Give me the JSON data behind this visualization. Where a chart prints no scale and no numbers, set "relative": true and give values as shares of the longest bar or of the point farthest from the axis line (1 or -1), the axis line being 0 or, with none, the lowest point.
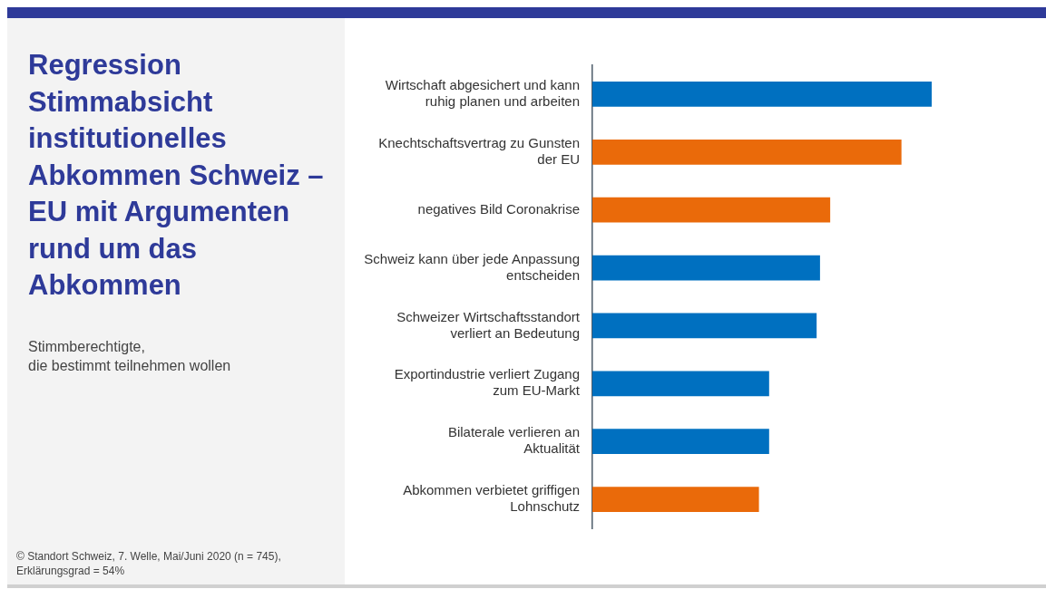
{
  "chart_data": {
    "type": "bar",
    "orientation": "horizontal",
    "relative": true,
    "title": "Regression Stimmabsicht institutionelles Abkommen Schweiz – EU mit Argumenten rund um das Abkommen",
    "subtitle": "Stimmberechtigte,\ndie bestimmt teilnehmen wollen",
    "categories": [
      "Wirtschaft abgesichert und kann ruhig planen und arbeiten",
      "Knechtschaftsvertrag zu Gunsten der EU",
      "negatives Bild Coronakrise",
      "Schweiz kann über jede Anpassung entscheiden",
      "Schweizer Wirtschaftsstandort verliert an Bedeutung",
      "Exportindustrie verliert Zugang zum EU-Markt",
      "Bilaterale verlieren an Aktualität",
      "Abkommen verbietet griffigen Lohnschutz"
    ],
    "values": [
      1,
      0.91,
      0.7,
      0.67,
      0.66,
      0.52,
      0.52,
      0.49
    ],
    "colors": [
      "#0070c0",
      "#ea6a0a",
      "#ea6a0a",
      "#0070c0",
      "#0070c0",
      "#0070c0",
      "#0070c0",
      "#ea6a0a"
    ],
    "annotations": [
      "© Standort Schweiz, 7. Welle, Mai/Juni 2020 (n = 745), Erklärungsgrad = 54%"
    ],
    "legend": false
  }
}
